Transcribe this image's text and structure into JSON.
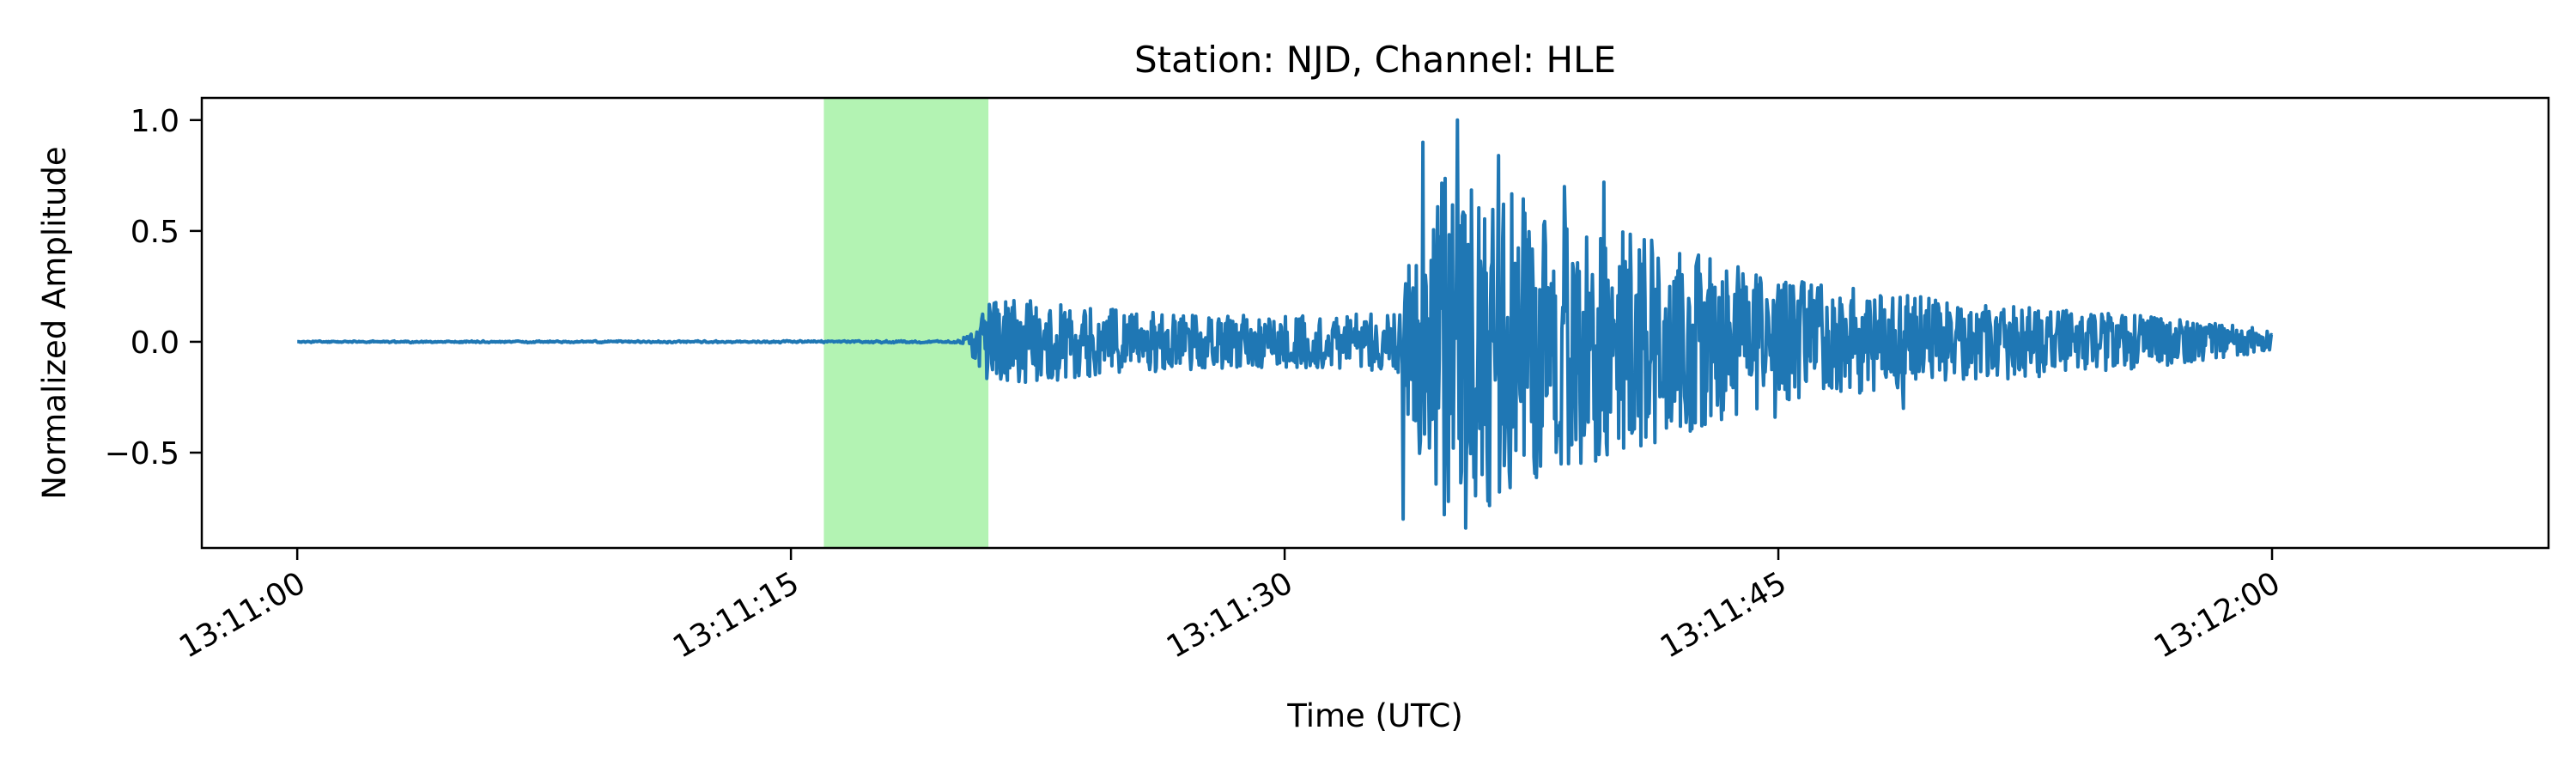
{
  "chart_data": {
    "type": "line",
    "title": "Station: NJD, Channel: HLE",
    "xlabel": "Time (UTC)",
    "ylabel": "Normalized Amplitude",
    "x_unit": "seconds",
    "xlim": [
      -2.9,
      68.4
    ],
    "ylim": [
      -0.93,
      1.1
    ],
    "x_ticks": [
      {
        "value": 0,
        "label": "13:11:00"
      },
      {
        "value": 15,
        "label": "13:11:15"
      },
      {
        "value": 30,
        "label": "13:11:30"
      },
      {
        "value": 45,
        "label": "13:11:45"
      },
      {
        "value": 60,
        "label": "13:12:00"
      }
    ],
    "y_ticks": [
      {
        "value": 1.0,
        "label": "1.0"
      },
      {
        "value": 0.5,
        "label": "0.5"
      },
      {
        "value": 0.0,
        "label": "0.0"
      },
      {
        "value": -0.5,
        "label": "−0.5"
      }
    ],
    "highlight_span": {
      "x_start": 16.0,
      "x_end": 21.0,
      "color": "#b3f3b3"
    },
    "grid": false,
    "series": [
      {
        "color": "#1f77b4",
        "envelope": [
          {
            "t": 0.0,
            "a": 0.006
          },
          {
            "t": 20.0,
            "a": 0.008
          },
          {
            "t": 20.4,
            "a": 0.06
          },
          {
            "t": 20.8,
            "a": 0.18
          },
          {
            "t": 22.0,
            "a": 0.2
          },
          {
            "t": 25.0,
            "a": 0.15
          },
          {
            "t": 30.0,
            "a": 0.12
          },
          {
            "t": 33.4,
            "a": 0.14
          },
          {
            "t": 34.0,
            "a": 0.5
          },
          {
            "t": 35.0,
            "a": 0.85
          },
          {
            "t": 36.0,
            "a": 0.8
          },
          {
            "t": 38.0,
            "a": 0.62
          },
          {
            "t": 40.0,
            "a": 0.55
          },
          {
            "t": 45.0,
            "a": 0.3
          },
          {
            "t": 50.0,
            "a": 0.2
          },
          {
            "t": 55.0,
            "a": 0.14
          },
          {
            "t": 60.0,
            "a": 0.06
          }
        ],
        "peaks": [
          {
            "t": 33.6,
            "y": -0.8
          },
          {
            "t": 34.2,
            "y": 0.9
          },
          {
            "t": 34.85,
            "y": -0.78
          },
          {
            "t": 35.25,
            "y": 1.0
          },
          {
            "t": 35.5,
            "y": -0.84
          },
          {
            "t": 36.5,
            "y": 0.84
          },
          {
            "t": 37.3,
            "y": 0.58
          },
          {
            "t": 38.5,
            "y": 0.7
          },
          {
            "t": 39.7,
            "y": 0.72
          },
          {
            "t": 40.3,
            "y": -0.48
          },
          {
            "t": 44.9,
            "y": -0.34
          },
          {
            "t": 48.8,
            "y": -0.3
          },
          {
            "t": 60.0,
            "y": 0.03
          }
        ]
      }
    ]
  }
}
